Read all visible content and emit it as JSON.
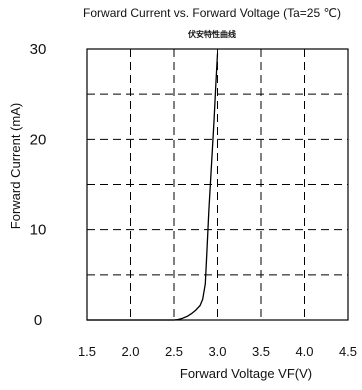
{
  "chart_data": {
    "type": "line",
    "title": "Forward Current vs. Forward Voltage (Ta=25 ℃)",
    "subtitle": "伏安特性曲线",
    "xlabel": "Forward Voltage  VF(V)",
    "ylabel": "Forward Current (mA)",
    "xlim": [
      1.5,
      4.5
    ],
    "ylim": [
      0,
      30
    ],
    "x_ticks": [
      1.5,
      2.0,
      2.5,
      3.0,
      3.5,
      4.0,
      4.5
    ],
    "x_tick_labels": [
      "1.5",
      "2.0",
      "2.5",
      "3.0",
      "3.5",
      "4.0",
      "4.5"
    ],
    "y_ticks": [
      0,
      10,
      20,
      30
    ],
    "y_tick_labels": [
      "0",
      "10",
      "20",
      "30"
    ],
    "y_gridlines": [
      5,
      10,
      15,
      20,
      25
    ],
    "x_gridlines": [
      2.0,
      2.5,
      3.0,
      3.5,
      4.0
    ],
    "grid": true,
    "grid_style": "dashed",
    "legend": "none",
    "series": [
      {
        "color": "#000000",
        "x": [
          1.5,
          2.0,
          2.5,
          2.55,
          2.6,
          2.65,
          2.7,
          2.75,
          2.8,
          2.83,
          2.86,
          2.88,
          2.9,
          2.93,
          2.96,
          2.98,
          3.0
        ],
        "y": [
          0,
          0,
          0,
          0.05,
          0.2,
          0.4,
          0.7,
          1.1,
          1.6,
          2.3,
          4.0,
          8.0,
          12.0,
          17.0,
          22.0,
          26.0,
          29.5
        ]
      }
    ]
  }
}
